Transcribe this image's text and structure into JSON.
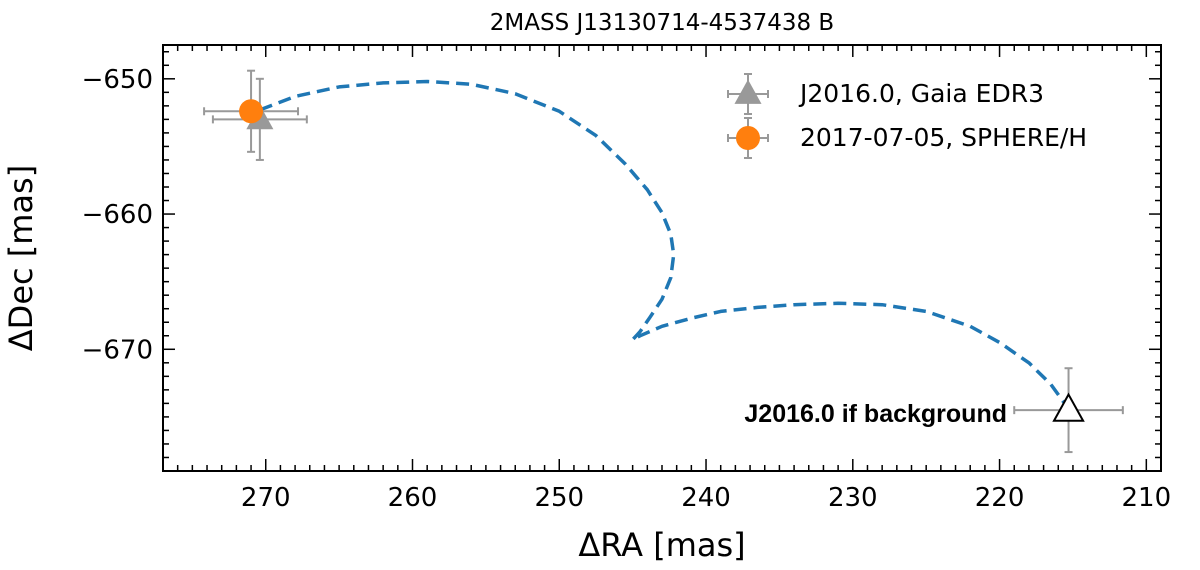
{
  "chart_data": {
    "type": "scatter",
    "title": "2MASS J13130714-4537438 B",
    "xlabel": "ΔRA [mas]",
    "ylabel": "ΔDec [mas]",
    "xlim": [
      277,
      209
    ],
    "ylim": [
      -679,
      -647.5
    ],
    "x_inverted": true,
    "xticks": [
      270,
      260,
      250,
      240,
      230,
      220,
      210
    ],
    "yticks": [
      -650,
      -660,
      -670
    ],
    "grid": false,
    "legend_position": "top-right",
    "series": [
      {
        "name": "J2016.0, Gaia EDR3",
        "marker": "triangle",
        "color": "#999999",
        "x": [
          270.4
        ],
        "y": [
          -653.0
        ],
        "x_err": [
          3.2
        ],
        "y_err": [
          3.0
        ]
      },
      {
        "name": "2017-07-05, SPHERE/H",
        "marker": "circle",
        "color": "#ff7f0e",
        "x": [
          271.0
        ],
        "y": [
          -652.4
        ],
        "x_err": [
          3.2
        ],
        "y_err": [
          3.0
        ]
      }
    ],
    "background_point": {
      "x": 215.3,
      "y": -674.5,
      "x_err": 3.7,
      "y_err": 3.1,
      "marker": "triangle-open",
      "label": "J2016.0 if background"
    },
    "track": {
      "style": "dashed",
      "color": "#1f77b4",
      "x": [
        270.4,
        268,
        265,
        262,
        259,
        256,
        253,
        250,
        247.5,
        245.5,
        244,
        243,
        242.4,
        242.2,
        242.4,
        243,
        243.8,
        244.5,
        245.0,
        244.5,
        243,
        241,
        239,
        236.5,
        234,
        231,
        228,
        225,
        222,
        220,
        218,
        216.5,
        215.3
      ],
      "y": [
        -652.3,
        -651.3,
        -650.6,
        -650.3,
        -650.2,
        -650.4,
        -651.1,
        -652.4,
        -654.2,
        -656.3,
        -658.2,
        -659.9,
        -661.5,
        -663.0,
        -664.7,
        -666.3,
        -667.6,
        -668.7,
        -669.3,
        -669.0,
        -668.3,
        -667.7,
        -667.2,
        -666.9,
        -666.7,
        -666.6,
        -666.7,
        -667.2,
        -668.3,
        -669.5,
        -671.0,
        -672.6,
        -674.4
      ]
    }
  }
}
